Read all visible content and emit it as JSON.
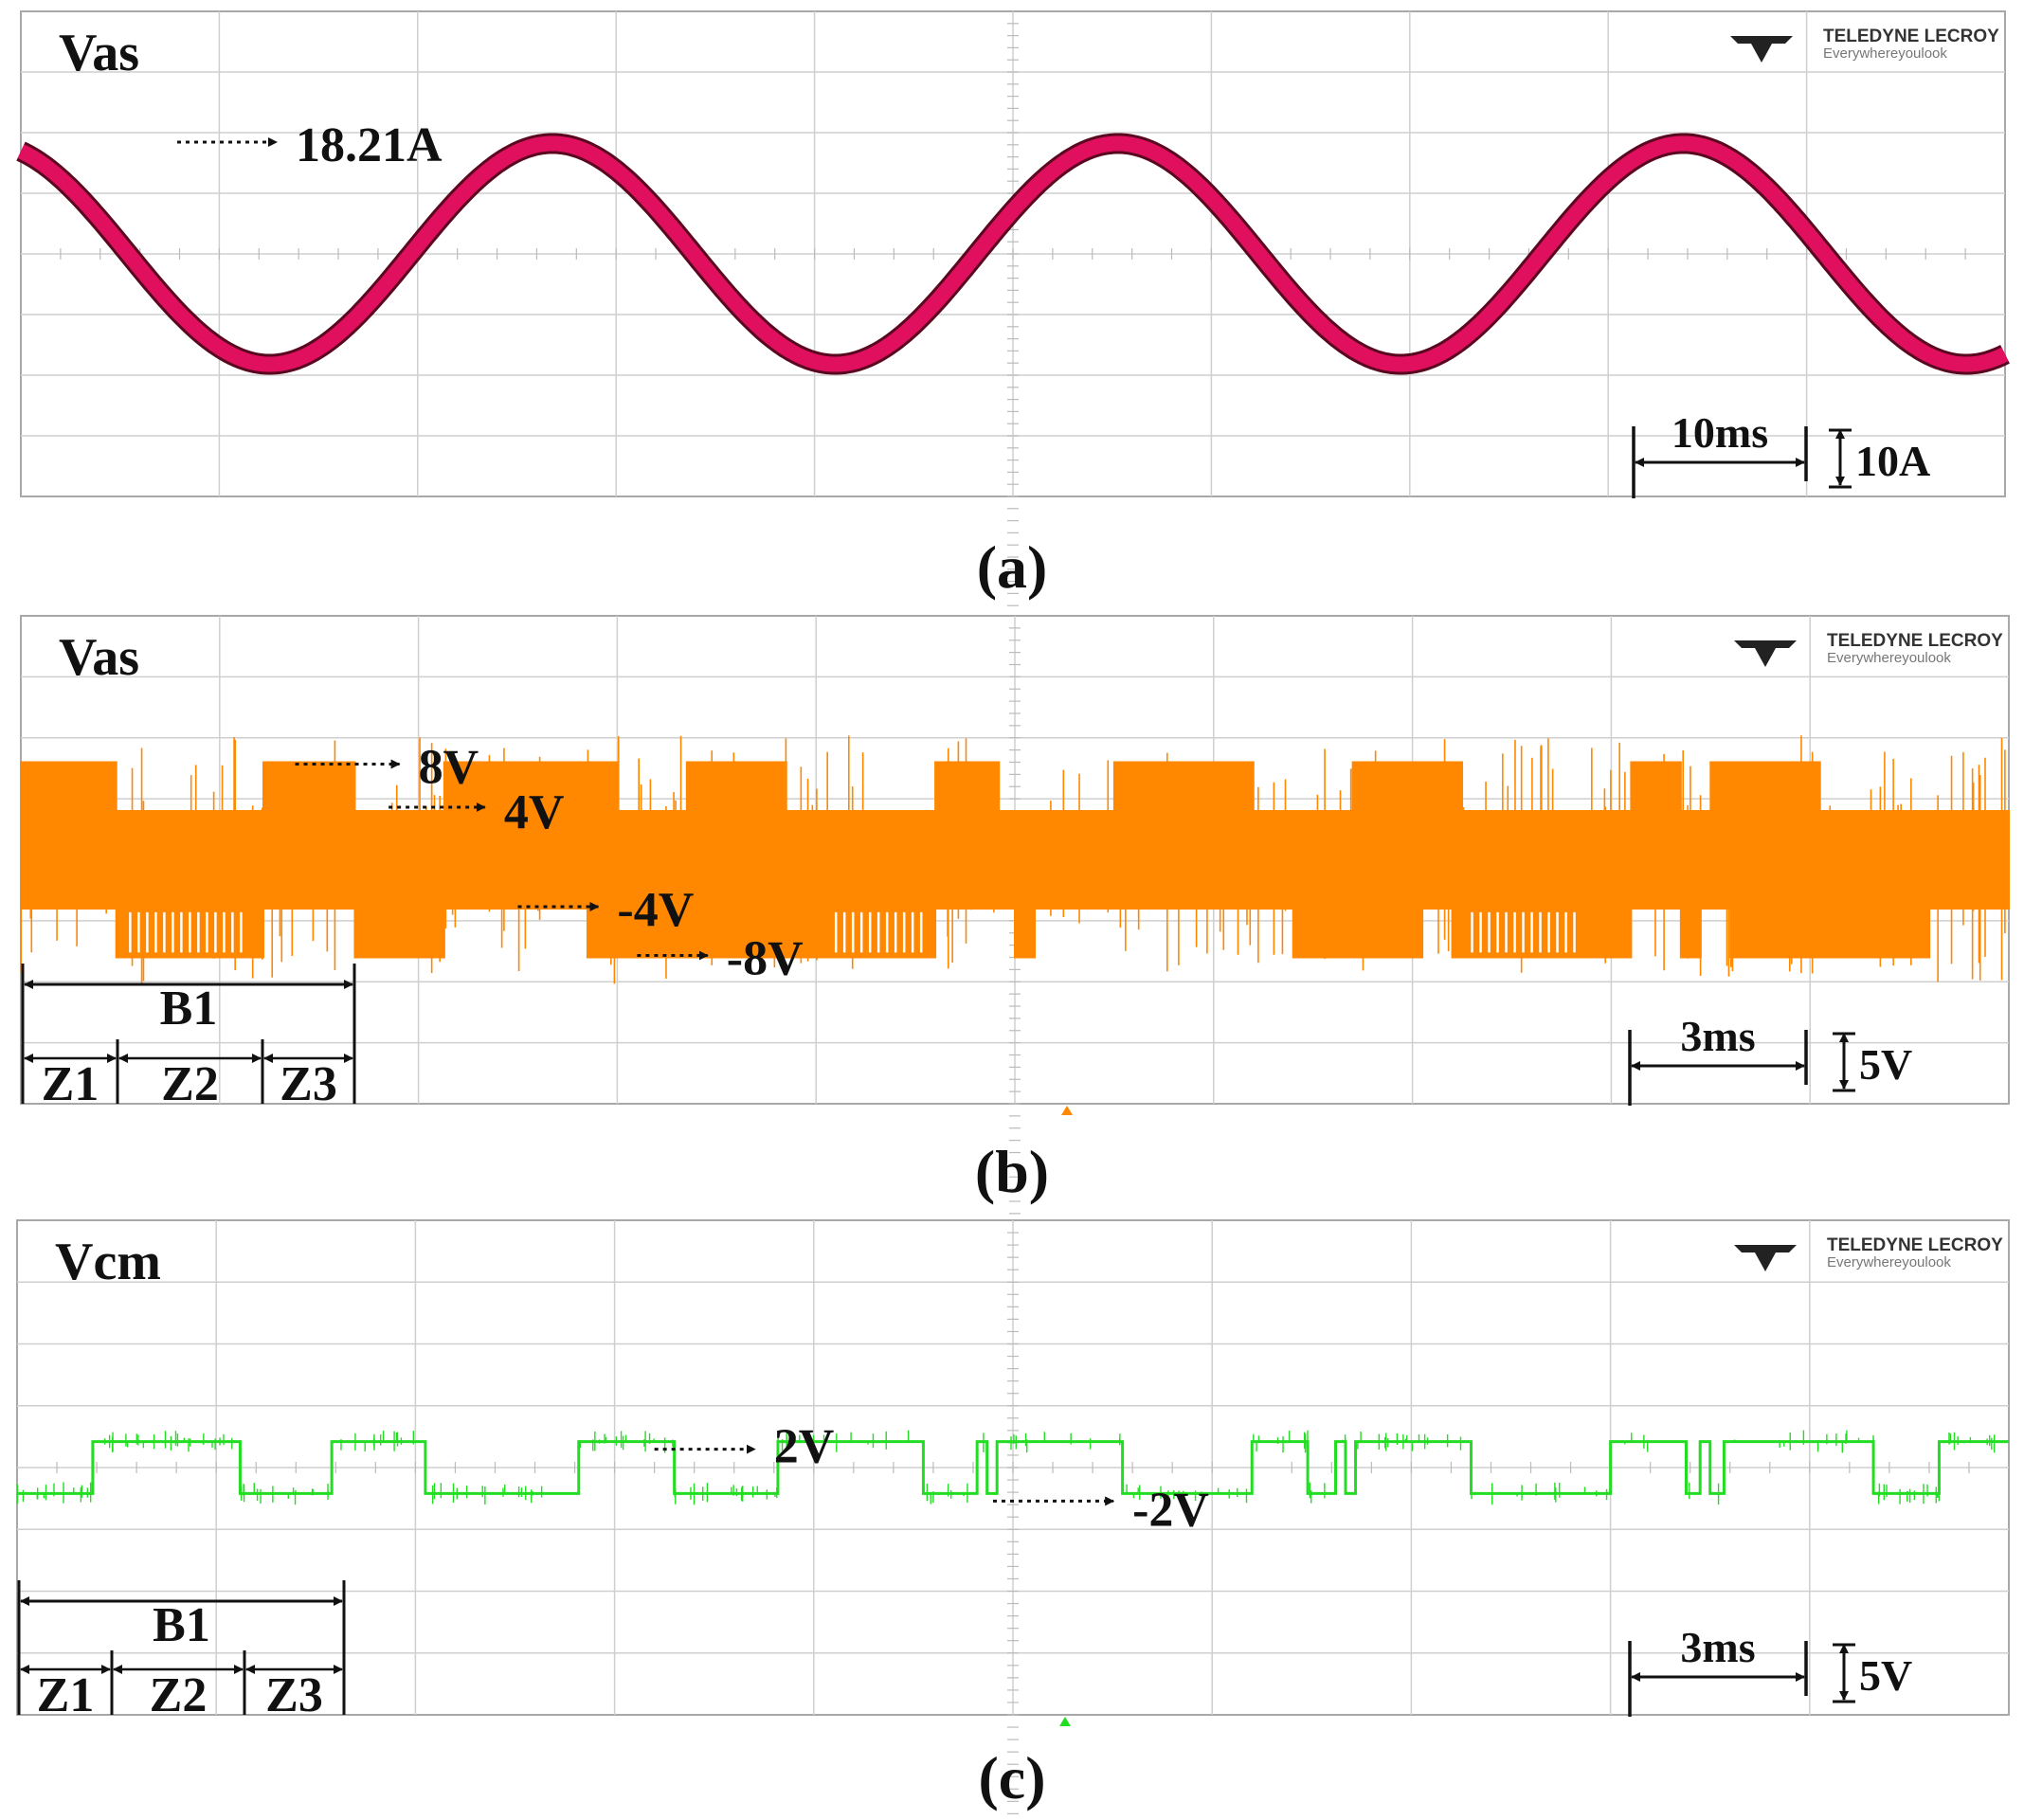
{
  "brand": {
    "line1": "TELEDYNE LECROY",
    "line2": "Everywhereyoulook"
  },
  "colors": {
    "panel_a": "#e0105f",
    "panel_b": "#ff8800",
    "panel_c": "#22dd22",
    "grid": "#cfcfcf",
    "border": "#a8a8a8"
  },
  "chart_data": [
    {
      "type": "line",
      "caption": "(a)",
      "title": "Vas",
      "time_div": "10ms",
      "amp_div": "10A",
      "grid": true,
      "annotations": [
        "18.21A"
      ],
      "waveform": {
        "shape": "sine",
        "amplitude": 18.21,
        "unit": "A",
        "period_divisions": 2.85,
        "phase_start": 0.06
      }
    },
    {
      "type": "line",
      "caption": "(b)",
      "title": "Vas",
      "time_div": "3ms",
      "amp_div": "5V",
      "grid": true,
      "annotations": [
        "8V",
        "4V",
        "-4V",
        "-8V"
      ],
      "brackets": [
        "B1",
        "Z1",
        "Z2",
        "Z3"
      ],
      "levels_V": [
        8,
        4,
        -4,
        -8
      ],
      "upper_envelope": [
        [
          0,
          8
        ],
        [
          0.48,
          4
        ],
        [
          1.22,
          8
        ],
        [
          1.68,
          4
        ],
        [
          2.13,
          8
        ],
        [
          3.0,
          4
        ],
        [
          3.35,
          8
        ],
        [
          3.85,
          4
        ],
        [
          4.6,
          8
        ],
        [
          4.92,
          4
        ],
        [
          5.5,
          8
        ],
        [
          6.2,
          4
        ],
        [
          6.7,
          8
        ],
        [
          7.25,
          4
        ],
        [
          8.1,
          8
        ],
        [
          8.35,
          4
        ],
        [
          8.5,
          8
        ],
        [
          9.05,
          4
        ],
        [
          10,
          4
        ]
      ],
      "lower_envelope": [
        [
          0,
          -4
        ],
        [
          0.48,
          -8
        ],
        [
          1.22,
          -4
        ],
        [
          1.68,
          -8
        ],
        [
          2.13,
          -4
        ],
        [
          2.85,
          -8
        ],
        [
          4.6,
          -4
        ],
        [
          5.0,
          -8
        ],
        [
          5.1,
          -4
        ],
        [
          6.2,
          -4
        ],
        [
          6.4,
          -8
        ],
        [
          7.05,
          -4
        ],
        [
          7.2,
          -8
        ],
        [
          8.1,
          -4
        ],
        [
          8.35,
          -8
        ],
        [
          8.45,
          -4
        ],
        [
          8.6,
          -8
        ],
        [
          9.6,
          -4
        ],
        [
          10,
          -4
        ]
      ]
    },
    {
      "type": "line",
      "caption": "(c)",
      "title": "Vcm",
      "time_div": "3ms",
      "amp_div": "5V",
      "grid": true,
      "annotations": [
        "2V",
        "-2V"
      ],
      "brackets": [
        "B1",
        "Z1",
        "Z2",
        "Z3"
      ],
      "levels_V": [
        2,
        -2
      ],
      "trace": [
        [
          0,
          -2
        ],
        [
          0.38,
          2
        ],
        [
          1.12,
          -2
        ],
        [
          1.58,
          2
        ],
        [
          2.05,
          -2
        ],
        [
          2.82,
          2
        ],
        [
          3.3,
          -2
        ],
        [
          3.82,
          2
        ],
        [
          4.55,
          -2
        ],
        [
          4.82,
          2
        ],
        [
          4.87,
          -2
        ],
        [
          4.92,
          2
        ],
        [
          5.55,
          -2
        ],
        [
          6.2,
          2
        ],
        [
          6.48,
          -2
        ],
        [
          6.62,
          2
        ],
        [
          6.67,
          -2
        ],
        [
          6.72,
          2
        ],
        [
          7.3,
          -2
        ],
        [
          8.0,
          2
        ],
        [
          8.38,
          -2
        ],
        [
          8.45,
          2
        ],
        [
          8.5,
          -2
        ],
        [
          8.57,
          2
        ],
        [
          9.32,
          -2
        ],
        [
          9.65,
          2
        ],
        [
          10,
          2
        ]
      ]
    }
  ]
}
